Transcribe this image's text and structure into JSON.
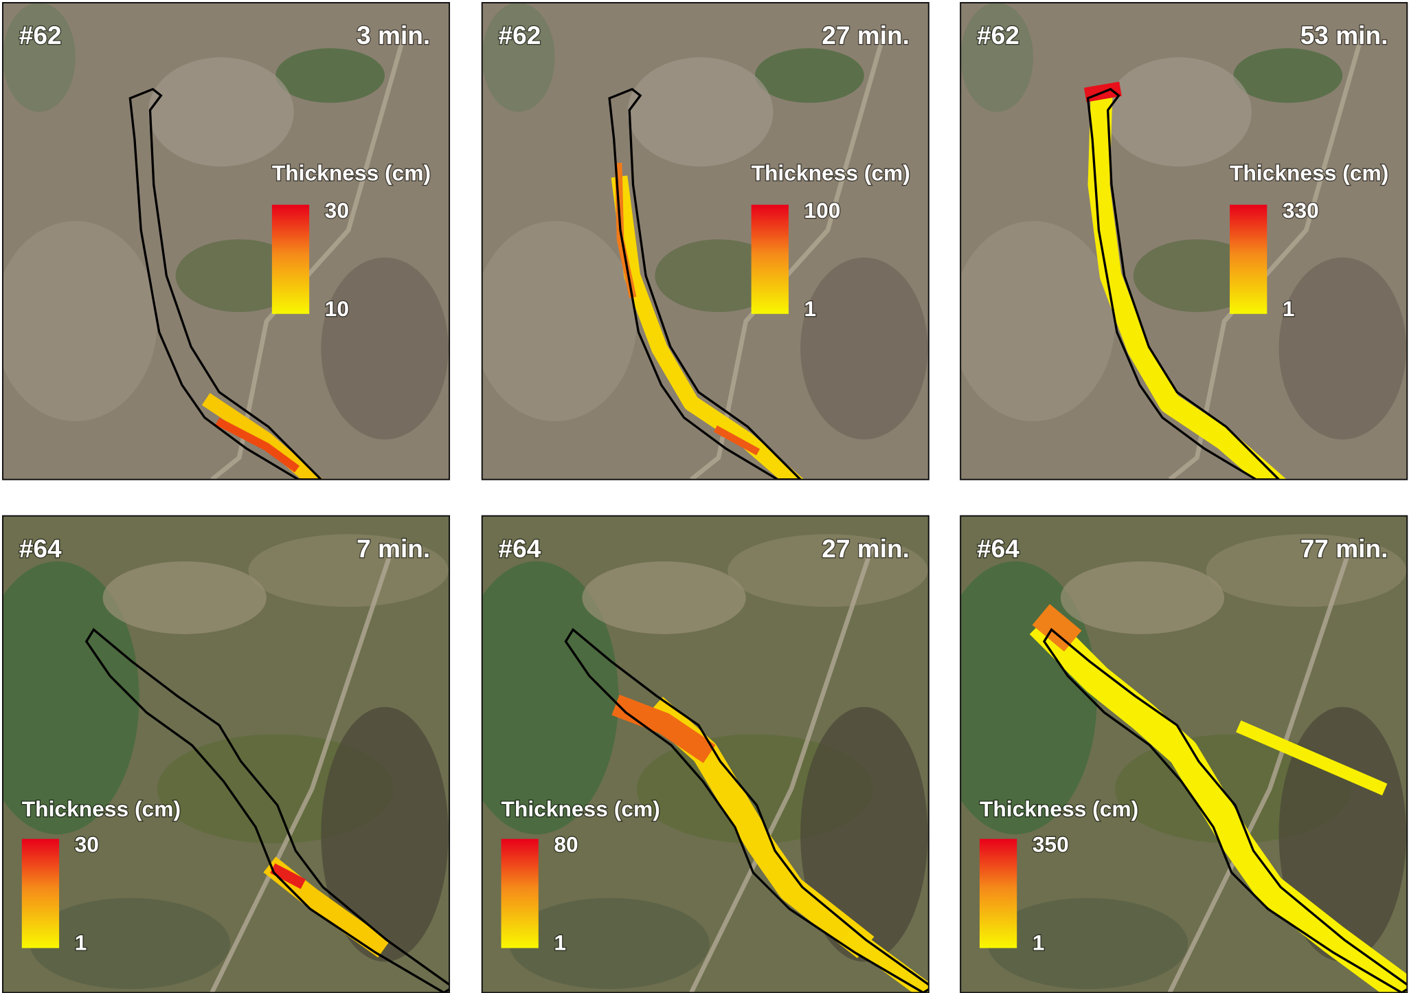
{
  "panels": [
    {
      "event": "#62",
      "time": "3 min.",
      "legend_title": "Thickness (cm)",
      "legend_max": 30,
      "legend_min": 10
    },
    {
      "event": "#62",
      "time": "27 min.",
      "legend_title": "Thickness (cm)",
      "legend_max": 100,
      "legend_min": 1
    },
    {
      "event": "#62",
      "time": "53 min.",
      "legend_title": "Thickness (cm)",
      "legend_max": 330,
      "legend_min": 1
    },
    {
      "event": "#64",
      "time": "7 min.",
      "legend_title": "Thickness (cm)",
      "legend_max": 30,
      "legend_min": 1
    },
    {
      "event": "#64",
      "time": "27 min.",
      "legend_title": "Thickness (cm)",
      "legend_max": 80,
      "legend_min": 1
    },
    {
      "event": "#64",
      "time": "77 min.",
      "legend_title": "Thickness (cm)",
      "legend_max": 350,
      "legend_min": 1
    }
  ]
}
